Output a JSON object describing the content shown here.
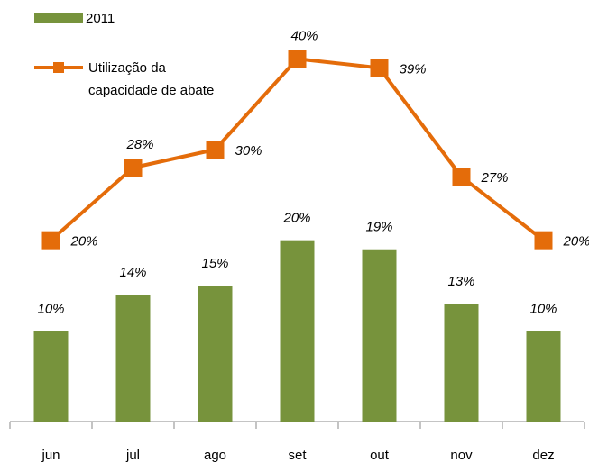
{
  "chart_data": {
    "type": "bar-line",
    "categories": [
      "jun",
      "jul",
      "ago",
      "set",
      "out",
      "nov",
      "dez"
    ],
    "series": [
      {
        "name": "2011",
        "type": "bar",
        "color": "#77933c",
        "values": [
          10,
          14,
          15,
          20,
          19,
          13,
          10
        ],
        "value_labels": [
          "10%",
          "14%",
          "15%",
          "20%",
          "19%",
          "13%",
          "10%"
        ]
      },
      {
        "name": "Utilização da capacidade de abate",
        "type": "line",
        "color": "#e46c0a",
        "values": [
          20,
          28,
          30,
          40,
          39,
          27,
          20
        ],
        "value_labels": [
          "20%",
          "28%",
          "30%",
          "40%",
          "39%",
          "27%",
          "20%"
        ]
      }
    ],
    "ylim": [
      0,
      45
    ],
    "legend": "top-left"
  }
}
